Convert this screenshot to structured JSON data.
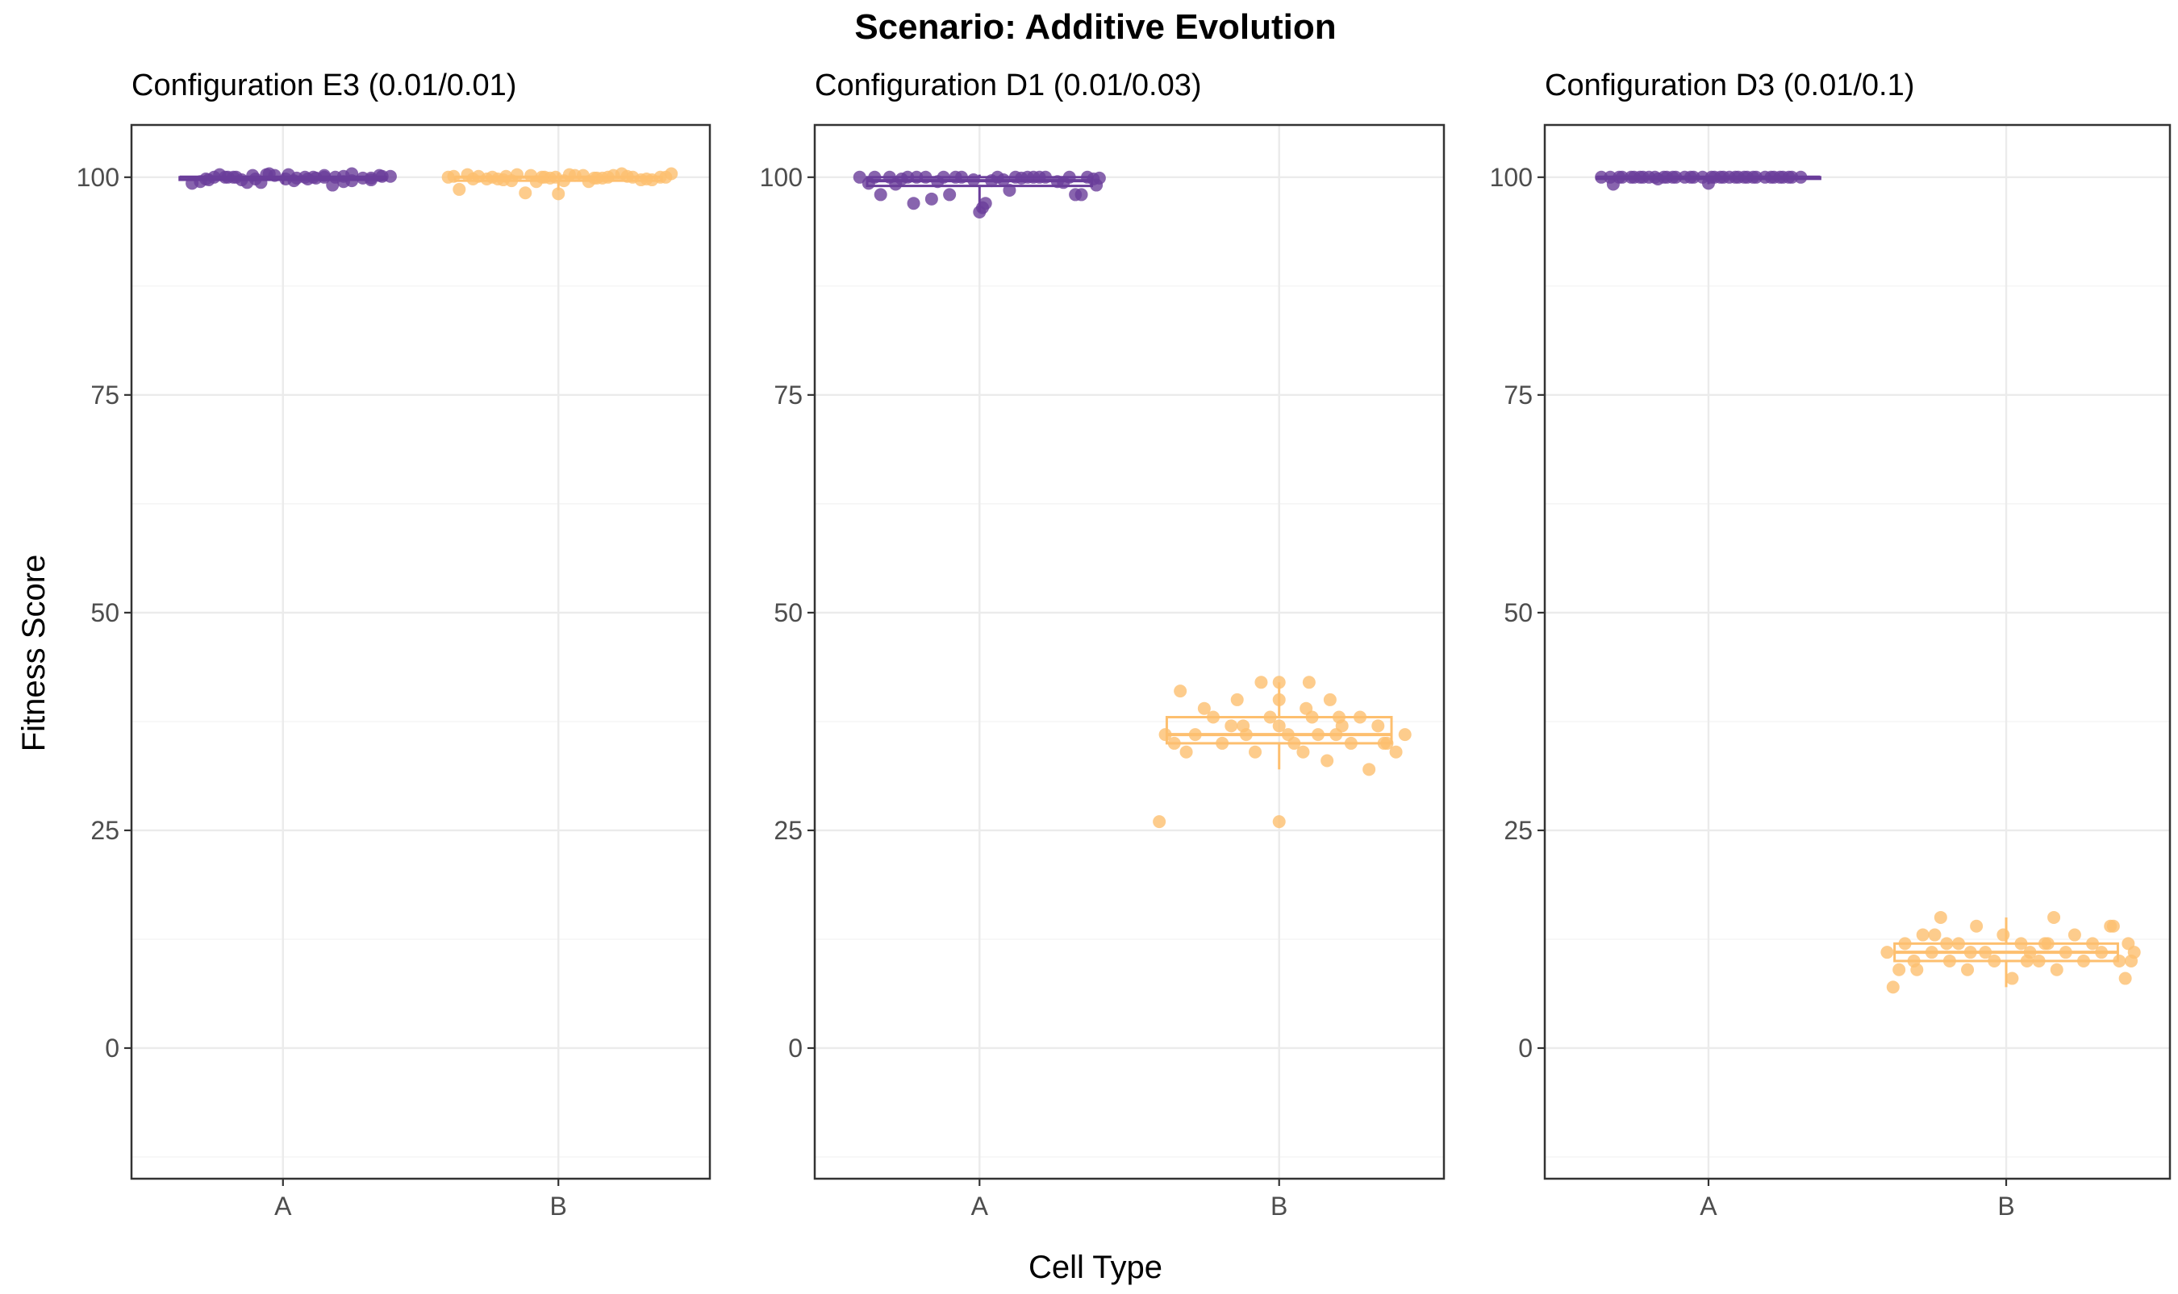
{
  "chart_data": {
    "type": "scatter",
    "title": "Scenario: Additive Evolution",
    "xlabel": "Cell Type",
    "ylabel": "Fitness Score",
    "ylim": [
      -15,
      106
    ],
    "y_ticks": [
      0,
      25,
      50,
      75,
      100
    ],
    "categories": [
      "A",
      "B"
    ],
    "colors": {
      "A": "#6a3d9a",
      "B": "#fdbf6f"
    },
    "grid": true,
    "legend": "none",
    "panels": [
      {
        "name": "Configuration E3 (0.01/0.01)",
        "boxes": [
          {
            "category": "A",
            "q1": 99.7,
            "median": 100,
            "q3": 100,
            "whisker_low": 99.2,
            "whisker_high": 100.5
          },
          {
            "category": "B",
            "q1": 99.6,
            "median": 100,
            "q3": 100,
            "whisker_low": 98.5,
            "whisker_high": 100.5
          }
        ],
        "points": [
          {
            "category": "A",
            "values": [
              99.5,
              100.3,
              100.0,
              99.8,
              100.2,
              99.6,
              100.0,
              99.1,
              100.4,
              99.9,
              100.1,
              99.7,
              100.0,
              99.4,
              100.3,
              99.8,
              100.0,
              100.2,
              99.5,
              99.9,
              100.1,
              99.3,
              100.0,
              99.7,
              100.4,
              99.9,
              100.0,
              99.6,
              100.2,
              99.8,
              100.0,
              99.4,
              100.3,
              99.9,
              100.1,
              99.7,
              100.0,
              100.2,
              99.8,
              100.0
            ],
            "jitter": [
              -0.3,
              -0.23,
              -0.17,
              -0.1,
              -0.03,
              0.04,
              0.11,
              0.18,
              0.25,
              0.32,
              0.39,
              -0.27,
              -0.2,
              -0.13,
              -0.06,
              0.01,
              0.08,
              0.15,
              0.22,
              0.29,
              0.36,
              -0.33,
              -0.25,
              -0.15,
              -0.05,
              0.05,
              0.15,
              0.25,
              0.35,
              -0.28,
              -0.18,
              -0.08,
              0.02,
              0.12,
              0.22,
              0.32,
              -0.21,
              -0.11,
              0.09,
              0.19
            ]
          },
          {
            "category": "B",
            "values": [
              100.0,
              100.3,
              99.8,
              100.1,
              98.2,
              100.0,
              99.6,
              100.2,
              99.9,
              100.4,
              99.7,
              100.0,
              98.6,
              100.1,
              99.8,
              100.3,
              99.5,
              100.0,
              100.2,
              99.9,
              98.1,
              100.0,
              99.7,
              100.4,
              100.1,
              99.8,
              100.0,
              99.6,
              100.2,
              99.9,
              100.3,
              99.5,
              100.0,
              100.1,
              99.8,
              100.0,
              99.7,
              100.2,
              100.0,
              99.9
            ],
            "jitter": [
              -0.4,
              -0.33,
              -0.26,
              -0.19,
              -0.12,
              -0.05,
              0.02,
              0.09,
              0.16,
              0.23,
              0.3,
              0.37,
              -0.36,
              -0.29,
              -0.22,
              -0.15,
              -0.08,
              -0.01,
              0.06,
              0.13,
              0.0,
              0.27,
              0.34,
              0.41,
              -0.38,
              -0.31,
              -0.24,
              -0.17,
              -0.1,
              -0.03,
              0.04,
              0.11,
              0.18,
              0.25,
              0.32,
              0.39,
              -0.2,
              0.2,
              -0.06,
              0.14
            ]
          }
        ]
      },
      {
        "name": "Configuration D1 (0.01/0.03)",
        "boxes": [
          {
            "category": "A",
            "q1": 99.0,
            "median": 99.6,
            "q3": 100,
            "whisker_low": 96.0,
            "whisker_high": 100.3
          },
          {
            "category": "B",
            "q1": 35.0,
            "median": 36.0,
            "q3": 38.0,
            "whisker_low": 32.0,
            "whisker_high": 42.0
          }
        ],
        "points": [
          {
            "category": "A",
            "values": [
              100.0,
              99.3,
              98.0,
              100.0,
              99.8,
              97.0,
              100.0,
              99.5,
              98.0,
              100.0,
              99.7,
              97.0,
              100.0,
              98.5,
              99.9,
              100.0,
              96.0,
              100.0,
              99.5,
              100.0,
              98.0,
              99.8,
              100.0,
              99.2,
              100.0,
              97.5,
              100.0,
              99.6,
              100.0,
              96.5,
              100.0,
              99.4,
              100.0,
              99.9,
              98.0,
              100.0,
              99.7,
              100.0,
              99.1,
              100.0
            ],
            "jitter": [
              -0.4,
              -0.37,
              -0.33,
              -0.3,
              -0.26,
              -0.22,
              -0.18,
              -0.14,
              -0.1,
              -0.06,
              -0.02,
              0.02,
              0.06,
              0.1,
              0.14,
              0.18,
              0.0,
              0.22,
              0.26,
              0.3,
              0.34,
              0.38,
              -0.35,
              -0.28,
              -0.21,
              -0.16,
              -0.08,
              0.04,
              0.12,
              0.01,
              0.2,
              0.28,
              0.36,
              0.4,
              0.32,
              -0.12,
              0.08,
              0.16,
              0.39,
              -0.24
            ]
          },
          {
            "category": "B",
            "values": [
              26.0,
              36.0,
              35.0,
              41.0,
              34.0,
              36.0,
              39.0,
              38.0,
              35.0,
              37.0,
              40.0,
              36.0,
              34.0,
              42.0,
              38.0,
              37.0,
              36.0,
              35.0,
              34.0,
              38.0,
              36.0,
              33.0,
              26.0,
              42.0,
              40.0,
              36.0,
              37.0,
              35.0,
              38.0,
              32.0,
              42.0,
              37.0,
              35.0,
              34.0,
              40.0,
              36.0,
              37.0,
              39.0,
              35.0,
              38.0
            ],
            "jitter": [
              -0.4,
              -0.38,
              -0.35,
              -0.33,
              -0.31,
              -0.28,
              -0.25,
              -0.22,
              -0.19,
              -0.16,
              -0.14,
              -0.11,
              -0.08,
              -0.06,
              -0.03,
              0.0,
              0.03,
              0.05,
              0.08,
              0.11,
              0.13,
              0.16,
              0.0,
              0.0,
              0.0,
              0.19,
              0.21,
              0.24,
              0.27,
              0.3,
              0.1,
              0.33,
              0.36,
              0.39,
              0.17,
              0.42,
              -0.12,
              0.09,
              0.35,
              0.2
            ]
          }
        ]
      },
      {
        "name": "Configuration D3 (0.01/0.1)",
        "boxes": [
          {
            "category": "A",
            "q1": 100,
            "median": 100,
            "q3": 100,
            "whisker_low": 99.2,
            "whisker_high": 100
          },
          {
            "category": "B",
            "q1": 10.0,
            "median": 11.0,
            "q3": 12.0,
            "whisker_low": 7.0,
            "whisker_high": 15.0
          }
        ],
        "points": [
          {
            "category": "A",
            "values": [
              100.0,
              100.0,
              99.2,
              100.0,
              100.0,
              100.0,
              100.0,
              99.8,
              100.0,
              100.0,
              100.0,
              100.0,
              100.0,
              100.0,
              99.3,
              100.0,
              100.0,
              100.0,
              100.0,
              100.0,
              100.0,
              100.0,
              100.0,
              100.0,
              100.0,
              100.0,
              100.0,
              100.0,
              100.0,
              100.0,
              100.0,
              100.0,
              100.0,
              100.0,
              100.0,
              100.0,
              100.0,
              100.0,
              100.0,
              100.0
            ],
            "jitter": [
              -0.36,
              -0.33,
              -0.32,
              -0.29,
              -0.26,
              -0.23,
              -0.2,
              -0.17,
              -0.14,
              -0.11,
              -0.08,
              -0.05,
              -0.02,
              0.01,
              0.0,
              0.04,
              0.07,
              0.1,
              0.13,
              0.16,
              0.19,
              0.22,
              0.25,
              0.28,
              0.31,
              -0.3,
              -0.25,
              -0.18,
              -0.12,
              -0.06,
              0.02,
              0.09,
              0.15,
              0.21,
              0.27,
              -0.22,
              -0.15,
              0.05,
              0.12,
              0.24
            ]
          },
          {
            "category": "B",
            "values": [
              11.0,
              7.0,
              9.0,
              12.0,
              10.0,
              13.0,
              11.0,
              15.0,
              10.0,
              12.0,
              9.0,
              14.0,
              11.0,
              10.0,
              13.0,
              8.0,
              12.0,
              11.0,
              10.0,
              12.0,
              9.0,
              11.0,
              13.0,
              10.0,
              12.0,
              11.0,
              14.0,
              15.0,
              10.0,
              12.0,
              11.0,
              9.0,
              13.0,
              8.0,
              12.0,
              11.0,
              10.0,
              14.0,
              12.0,
              10.0
            ],
            "jitter": [
              -0.4,
              -0.38,
              -0.36,
              -0.34,
              -0.31,
              -0.28,
              -0.25,
              -0.22,
              -0.19,
              -0.16,
              -0.13,
              -0.1,
              -0.07,
              -0.04,
              -0.01,
              0.02,
              0.05,
              0.08,
              0.11,
              0.14,
              0.17,
              0.2,
              0.23,
              0.26,
              0.29,
              0.32,
              0.35,
              0.16,
              0.38,
              0.41,
              0.43,
              -0.3,
              -0.24,
              0.4,
              0.13,
              -0.12,
              0.07,
              0.36,
              -0.2,
              0.42
            ]
          }
        ]
      }
    ]
  }
}
